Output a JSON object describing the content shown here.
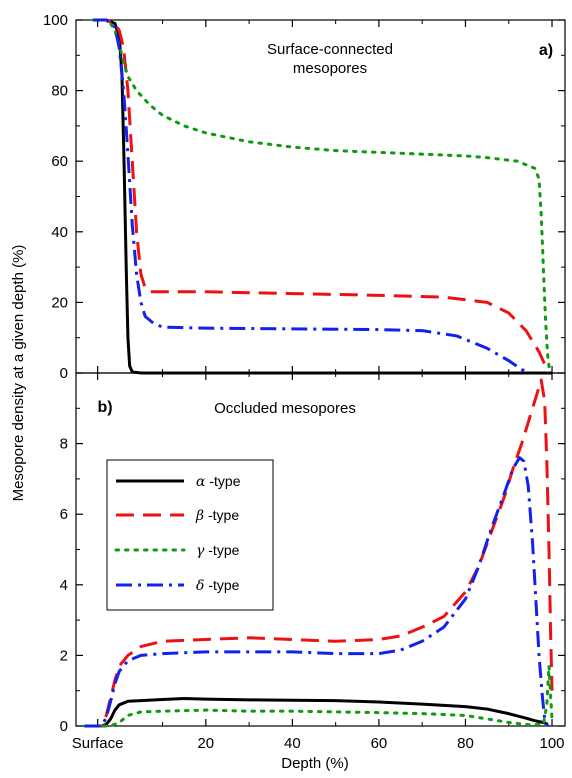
{
  "chart_data": {
    "type": "line",
    "xlabel": "Depth (%)",
    "ylabel": "Mesopore density at a given depth (%)",
    "xlim": [
      -10,
      103
    ],
    "x_ticks": [
      {
        "value": -5,
        "label": "Surface"
      },
      {
        "value": 20,
        "label": "20"
      },
      {
        "value": 40,
        "label": "40"
      },
      {
        "value": 60,
        "label": "60"
      },
      {
        "value": 80,
        "label": "80"
      },
      {
        "value": 100,
        "label": "100"
      }
    ],
    "legend": {
      "placement": "left",
      "entries": [
        {
          "symbol": "α",
          "suffix": " -type",
          "color": "#000000",
          "dash": "solid"
        },
        {
          "symbol": "β",
          "suffix": " -type",
          "color": "#ee1111",
          "dash": "dashed"
        },
        {
          "symbol": "γ",
          "suffix": " -type",
          "color": "#119911",
          "dash": "dotted"
        },
        {
          "symbol": "δ",
          "suffix": " -type",
          "color": "#1122ee",
          "dash": "dashdot"
        }
      ]
    },
    "panels": [
      {
        "tag": "a)",
        "title_lines": [
          "Surface-connected",
          "mesopores"
        ],
        "ylim": [
          0,
          100
        ],
        "y_ticks": [
          0,
          20,
          40,
          60,
          80,
          100
        ],
        "series": [
          {
            "key": "alpha",
            "color": "#000000",
            "dash": "solid",
            "width": 3,
            "points": [
              [
                -6,
                100
              ],
              [
                -3,
                100
              ],
              [
                -1,
                99
              ],
              [
                0,
                95
              ],
              [
                0.6,
                85
              ],
              [
                1.1,
                60
              ],
              [
                1.6,
                30
              ],
              [
                2,
                10
              ],
              [
                2.4,
                2
              ],
              [
                3,
                0.3
              ],
              [
                5,
                0
              ],
              [
                100,
                0
              ]
            ]
          },
          {
            "key": "beta",
            "color": "#ee1111",
            "dash": "dashed",
            "width": 3,
            "points": [
              [
                -6,
                100
              ],
              [
                -3,
                100
              ],
              [
                -1,
                99
              ],
              [
                0,
                97
              ],
              [
                1,
                92
              ],
              [
                2,
                80
              ],
              [
                3,
                60
              ],
              [
                4,
                40
              ],
              [
                5,
                28
              ],
              [
                6,
                24
              ],
              [
                7,
                23
              ],
              [
                10,
                23
              ],
              [
                20,
                23
              ],
              [
                40,
                22.5
              ],
              [
                60,
                22
              ],
              [
                75,
                21.5
              ],
              [
                85,
                20
              ],
              [
                90,
                17
              ],
              [
                94,
                12
              ],
              [
                97,
                6
              ],
              [
                98.5,
                2
              ],
              [
                99.2,
                0
              ]
            ]
          },
          {
            "key": "gamma",
            "color": "#119911",
            "dash": "dotted",
            "width": 3,
            "points": [
              [
                -6,
                100
              ],
              [
                -3,
                100
              ],
              [
                -2,
                99
              ],
              [
                -1,
                97
              ],
              [
                0,
                93
              ],
              [
                1,
                88
              ],
              [
                2,
                84
              ],
              [
                4,
                80
              ],
              [
                7,
                76
              ],
              [
                10,
                73
              ],
              [
                15,
                70
              ],
              [
                20,
                68
              ],
              [
                30,
                65.5
              ],
              [
                40,
                64
              ],
              [
                50,
                63
              ],
              [
                60,
                62.5
              ],
              [
                70,
                62
              ],
              [
                80,
                61.5
              ],
              [
                85,
                61
              ],
              [
                92,
                60
              ],
              [
                96,
                58
              ],
              [
                97,
                55
              ],
              [
                97.5,
                45
              ],
              [
                98,
                30
              ],
              [
                98.5,
                15
              ],
              [
                99,
                5
              ],
              [
                99.5,
                0
              ]
            ]
          },
          {
            "key": "delta",
            "color": "#1122ee",
            "dash": "dashdot",
            "width": 3,
            "points": [
              [
                -6,
                100
              ],
              [
                -3,
                100
              ],
              [
                -1,
                98
              ],
              [
                0,
                92
              ],
              [
                1,
                80
              ],
              [
                2,
                62
              ],
              [
                3,
                42
              ],
              [
                4,
                28
              ],
              [
                5,
                20
              ],
              [
                6,
                16
              ],
              [
                8,
                14
              ],
              [
                10,
                13
              ],
              [
                20,
                12.7
              ],
              [
                40,
                12.5
              ],
              [
                60,
                12.3
              ],
              [
                70,
                12
              ],
              [
                78,
                10.5
              ],
              [
                85,
                7
              ],
              [
                90,
                3.5
              ],
              [
                93,
                1
              ],
              [
                95,
                0
              ]
            ]
          }
        ]
      },
      {
        "tag": "b)",
        "title_lines": [
          "Occluded mesopores"
        ],
        "ylim": [
          0,
          10
        ],
        "y_ticks": [
          0,
          2,
          4,
          6,
          8
        ],
        "series": [
          {
            "key": "alpha",
            "color": "#000000",
            "dash": "solid",
            "width": 3,
            "points": [
              [
                -8,
                0
              ],
              [
                -4,
                0
              ],
              [
                -3,
                0.05
              ],
              [
                -2,
                0.2
              ],
              [
                -1,
                0.45
              ],
              [
                0,
                0.6
              ],
              [
                2,
                0.7
              ],
              [
                5,
                0.72
              ],
              [
                10,
                0.75
              ],
              [
                15,
                0.78
              ],
              [
                20,
                0.76
              ],
              [
                30,
                0.74
              ],
              [
                40,
                0.73
              ],
              [
                50,
                0.72
              ],
              [
                60,
                0.68
              ],
              [
                70,
                0.62
              ],
              [
                80,
                0.55
              ],
              [
                85,
                0.48
              ],
              [
                90,
                0.35
              ],
              [
                94,
                0.22
              ],
              [
                96,
                0.15
              ],
              [
                98,
                0.1
              ],
              [
                99,
                0.05
              ]
            ]
          },
          {
            "key": "beta",
            "color": "#ee1111",
            "dash": "dashed",
            "width": 3,
            "points": [
              [
                -8,
                0
              ],
              [
                -4,
                0
              ],
              [
                -3,
                0.3
              ],
              [
                -2,
                0.8
              ],
              [
                -1,
                1.3
              ],
              [
                0,
                1.7
              ],
              [
                2,
                2.0
              ],
              [
                5,
                2.25
              ],
              [
                10,
                2.4
              ],
              [
                20,
                2.45
              ],
              [
                30,
                2.5
              ],
              [
                40,
                2.45
              ],
              [
                50,
                2.4
              ],
              [
                60,
                2.45
              ],
              [
                65,
                2.55
              ],
              [
                70,
                2.8
              ],
              [
                75,
                3.1
              ],
              [
                80,
                3.8
              ],
              [
                83,
                4.5
              ],
              [
                86,
                5.5
              ],
              [
                89,
                6.5
              ],
              [
                91,
                7.3
              ],
              [
                93,
                8.0
              ],
              [
                95,
                8.8
              ],
              [
                96.5,
                9.4
              ],
              [
                97.5,
                9.8
              ],
              [
                98.3,
                9.2
              ],
              [
                98.8,
                7.5
              ],
              [
                99.3,
                5
              ],
              [
                99.7,
                2.5
              ],
              [
                100,
                1
              ]
            ]
          },
          {
            "key": "gamma",
            "color": "#119911",
            "dash": "dotted",
            "width": 3,
            "points": [
              [
                -8,
                0
              ],
              [
                -4,
                0
              ],
              [
                -2,
                0
              ],
              [
                0,
                0.1
              ],
              [
                2,
                0.3
              ],
              [
                5,
                0.4
              ],
              [
                10,
                0.42
              ],
              [
                20,
                0.45
              ],
              [
                30,
                0.42
              ],
              [
                40,
                0.42
              ],
              [
                50,
                0.4
              ],
              [
                60,
                0.38
              ],
              [
                70,
                0.35
              ],
              [
                80,
                0.3
              ],
              [
                85,
                0.2
              ],
              [
                90,
                0.1
              ],
              [
                95,
                0.03
              ],
              [
                98,
                0.05
              ],
              [
                98.8,
                0.6
              ],
              [
                99.3,
                1.7
              ],
              [
                99.7,
                0.8
              ],
              [
                100,
                0.2
              ]
            ]
          },
          {
            "key": "delta",
            "color": "#1122ee",
            "dash": "dashdot",
            "width": 3,
            "points": [
              [
                -8,
                0
              ],
              [
                -4,
                0
              ],
              [
                -3,
                0.25
              ],
              [
                -2,
                0.7
              ],
              [
                -1,
                1.2
              ],
              [
                0,
                1.55
              ],
              [
                2,
                1.85
              ],
              [
                5,
                2.0
              ],
              [
                10,
                2.05
              ],
              [
                20,
                2.1
              ],
              [
                30,
                2.1
              ],
              [
                40,
                2.1
              ],
              [
                50,
                2.05
              ],
              [
                60,
                2.05
              ],
              [
                65,
                2.15
              ],
              [
                70,
                2.4
              ],
              [
                75,
                2.8
              ],
              [
                80,
                3.6
              ],
              [
                83,
                4.5
              ],
              [
                86,
                5.6
              ],
              [
                89,
                6.6
              ],
              [
                91,
                7.3
              ],
              [
                92.5,
                7.6
              ],
              [
                93.5,
                7.5
              ],
              [
                94.5,
                6.8
              ],
              [
                95.5,
                5.2
              ],
              [
                96.3,
                3.5
              ],
              [
                97,
                2
              ],
              [
                97.8,
                0.8
              ],
              [
                98.3,
                0.2
              ],
              [
                99,
                0
              ]
            ]
          }
        ]
      }
    ]
  }
}
